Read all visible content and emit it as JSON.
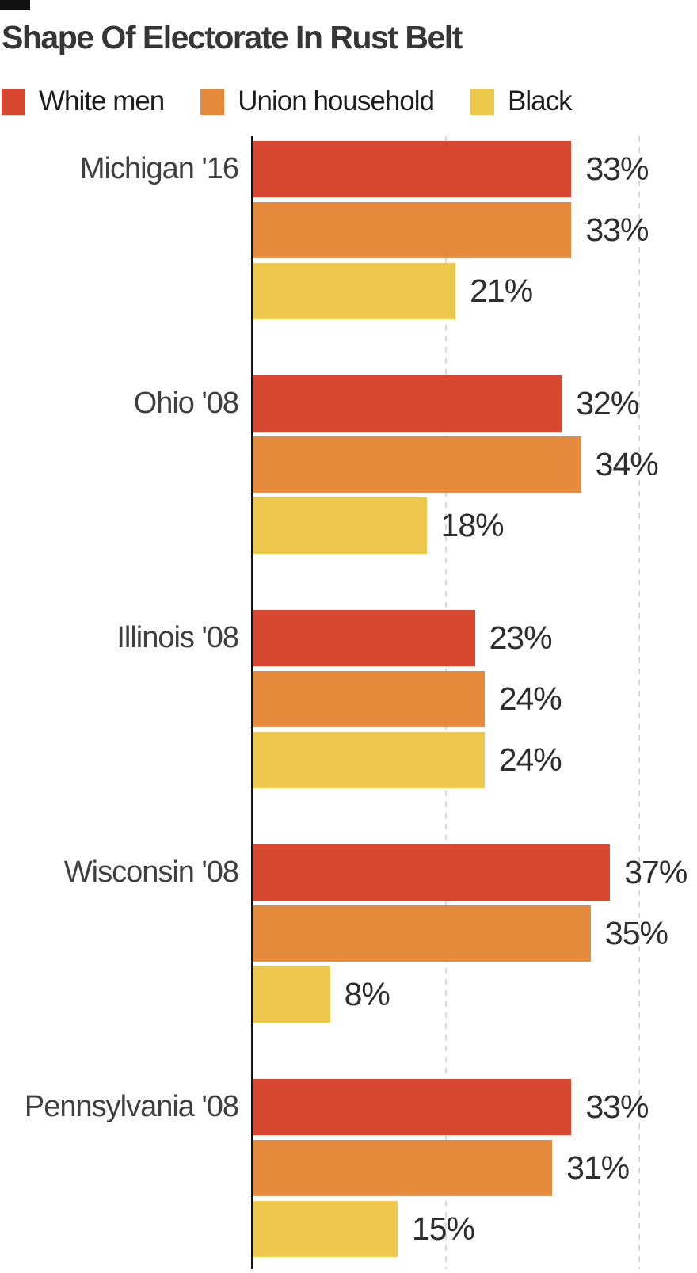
{
  "title": "Shape Of Electorate In Rust Belt",
  "legend": {
    "items": [
      {
        "label": "White men",
        "color": "#d8472f"
      },
      {
        "label": "Union household",
        "color": "#e68a3c"
      },
      {
        "label": "Black",
        "color": "#eec84d"
      }
    ]
  },
  "chart_data": {
    "type": "bar",
    "orientation": "horizontal",
    "title": "Shape Of Electorate In Rust Belt",
    "categories": [
      "Michigan '16",
      "Ohio '08",
      "Illinois '08",
      "Wisconsin '08",
      "Pennsylvania '08"
    ],
    "series": [
      {
        "name": "White men",
        "color": "#d8472f",
        "values": [
          33,
          32,
          23,
          37,
          33
        ]
      },
      {
        "name": "Union household",
        "color": "#e68a3c",
        "values": [
          33,
          34,
          24,
          35,
          31
        ]
      },
      {
        "name": "Black",
        "color": "#eec84d",
        "values": [
          21,
          18,
          24,
          8,
          15
        ]
      }
    ],
    "value_suffix": "%",
    "xlim": [
      0,
      46
    ],
    "gridlines_at": [
      20,
      40
    ],
    "grid": true,
    "legend_position": "top",
    "value_labels": "outside-end",
    "axis_color": "#141414",
    "gridline_color": "#d9d9d9",
    "label_color": "#3f3f3f"
  }
}
